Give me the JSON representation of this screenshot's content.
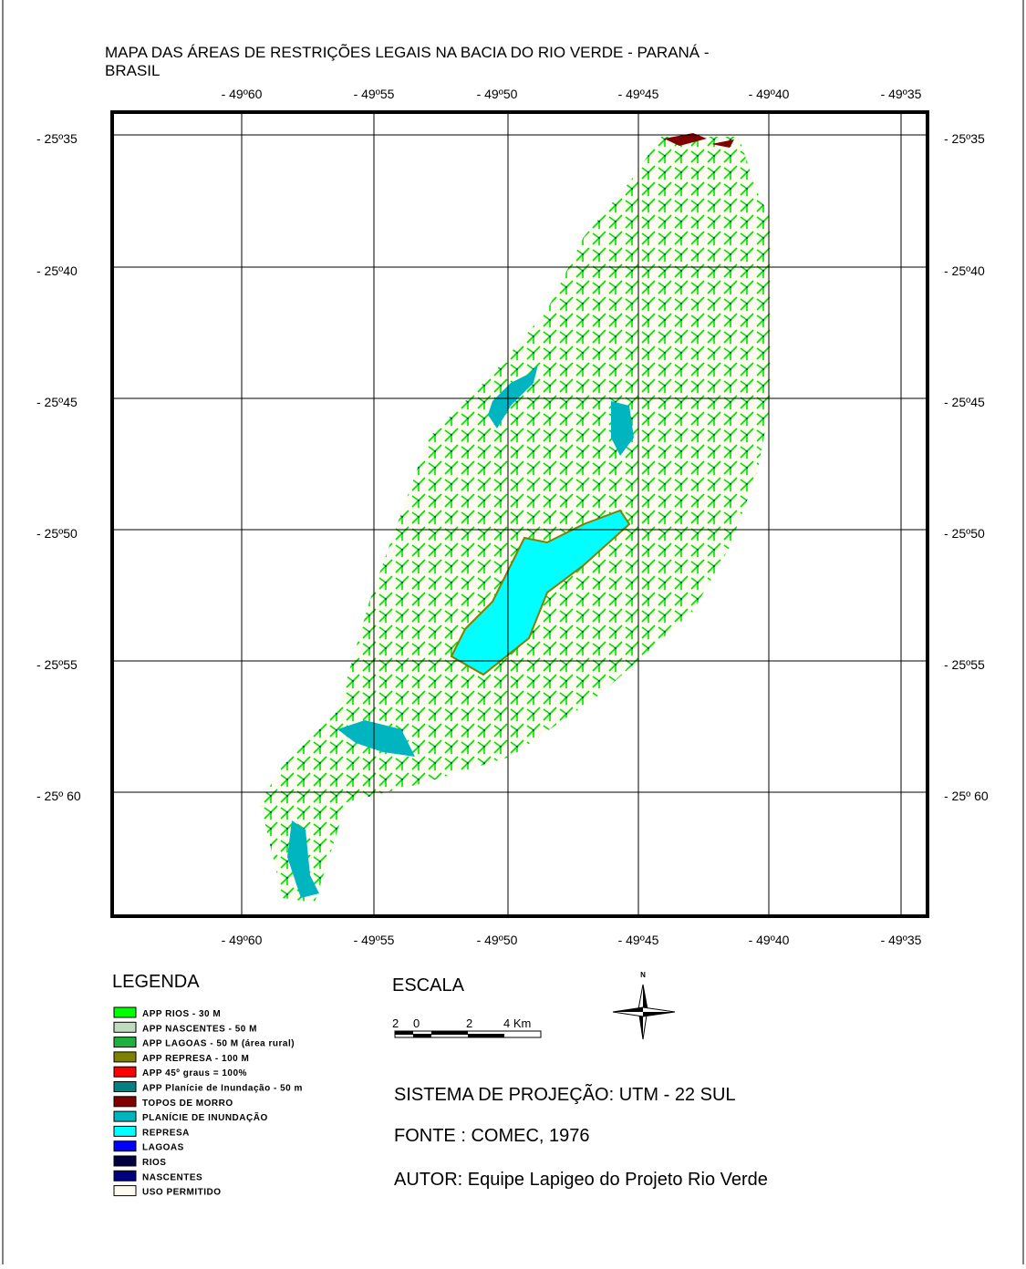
{
  "title": "MAPA DAS ÁREAS DE RESTRIÇÕES LEGAIS NA BACIA DO RIO VERDE - PARANÁ - BRASIL",
  "longitude_labels": [
    "- 49º60",
    "- 49º55",
    "- 49º50",
    "- 49º45",
    "- 49º40",
    "- 49º35"
  ],
  "latitude_labels": [
    "- 25º35",
    "- 25º40",
    "- 25º45",
    "- 25º50",
    "- 25º55",
    "- 25º 60"
  ],
  "legend": {
    "title": "LEGENDA",
    "items": [
      {
        "label": "APP RIOS - 30 M",
        "color": "#00ff00"
      },
      {
        "label": "APP NASCENTES - 50 M",
        "color": "#c0dcc0"
      },
      {
        "label": "APP LAGOAS - 50 M (área rural)",
        "color": "#20b040"
      },
      {
        "label": "APP REPRESA - 100 M",
        "color": "#808000"
      },
      {
        "label": "APP 45º graus = 100%",
        "color": "#ff0000"
      },
      {
        "label": "APP Planície de Inundação - 50 m",
        "color": "#008080"
      },
      {
        "label": "TOPOS DE MORRO",
        "color": "#800000"
      },
      {
        "label": "PLANÍCIE DE INUNDAÇÃO",
        "color": "#00b4c0"
      },
      {
        "label": "REPRESA",
        "color": "#00ffff"
      },
      {
        "label": "LAGOAS",
        "color": "#0000ff"
      },
      {
        "label": "RIOS",
        "color": "#000040"
      },
      {
        "label": "NASCENTES",
        "color": "#000080"
      },
      {
        "label": "USO PERMITIDO",
        "color": "#fffbf0"
      }
    ]
  },
  "scale": {
    "title": "ESCALA",
    "labels": [
      "2",
      "0",
      "2",
      "4 Km"
    ]
  },
  "north": "N",
  "projection": "SISTEMA DE PROJEÇÃO: UTM - 22 SUL",
  "source": "FONTE : COMEC, 1976",
  "author": "AUTOR: Equipe Lapigeo do Projeto Rio Verde"
}
